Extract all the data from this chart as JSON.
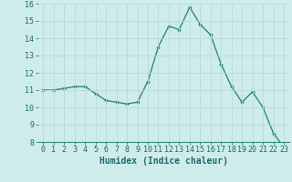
{
  "x": [
    0,
    1,
    2,
    3,
    4,
    5,
    6,
    7,
    8,
    9,
    10,
    11,
    12,
    13,
    14,
    15,
    16,
    17,
    18,
    19,
    20,
    21,
    22,
    23
  ],
  "y": [
    11.0,
    11.0,
    11.1,
    11.2,
    11.2,
    10.8,
    10.4,
    10.3,
    10.2,
    10.3,
    11.5,
    13.5,
    14.7,
    14.5,
    15.8,
    14.8,
    14.2,
    12.5,
    11.2,
    10.3,
    10.9,
    10.0,
    8.5,
    7.7
  ],
  "xlabel": "Humidex (Indice chaleur)",
  "ylim": [
    8,
    16
  ],
  "xlim": [
    -0.5,
    23.5
  ],
  "yticks": [
    8,
    9,
    10,
    11,
    12,
    13,
    14,
    15,
    16
  ],
  "xticks": [
    0,
    1,
    2,
    3,
    4,
    5,
    6,
    7,
    8,
    9,
    10,
    11,
    12,
    13,
    14,
    15,
    16,
    17,
    18,
    19,
    20,
    21,
    22,
    23
  ],
  "line_color": "#2e8b7a",
  "marker": "D",
  "marker_size": 1.8,
  "bg_color": "#ceecea",
  "grid_color": "#b8dbd8",
  "label_color": "#1a6b6b",
  "line_width": 1.0,
  "xlabel_fontsize": 7,
  "tick_fontsize": 6,
  "ylabel_fontsize": 6
}
